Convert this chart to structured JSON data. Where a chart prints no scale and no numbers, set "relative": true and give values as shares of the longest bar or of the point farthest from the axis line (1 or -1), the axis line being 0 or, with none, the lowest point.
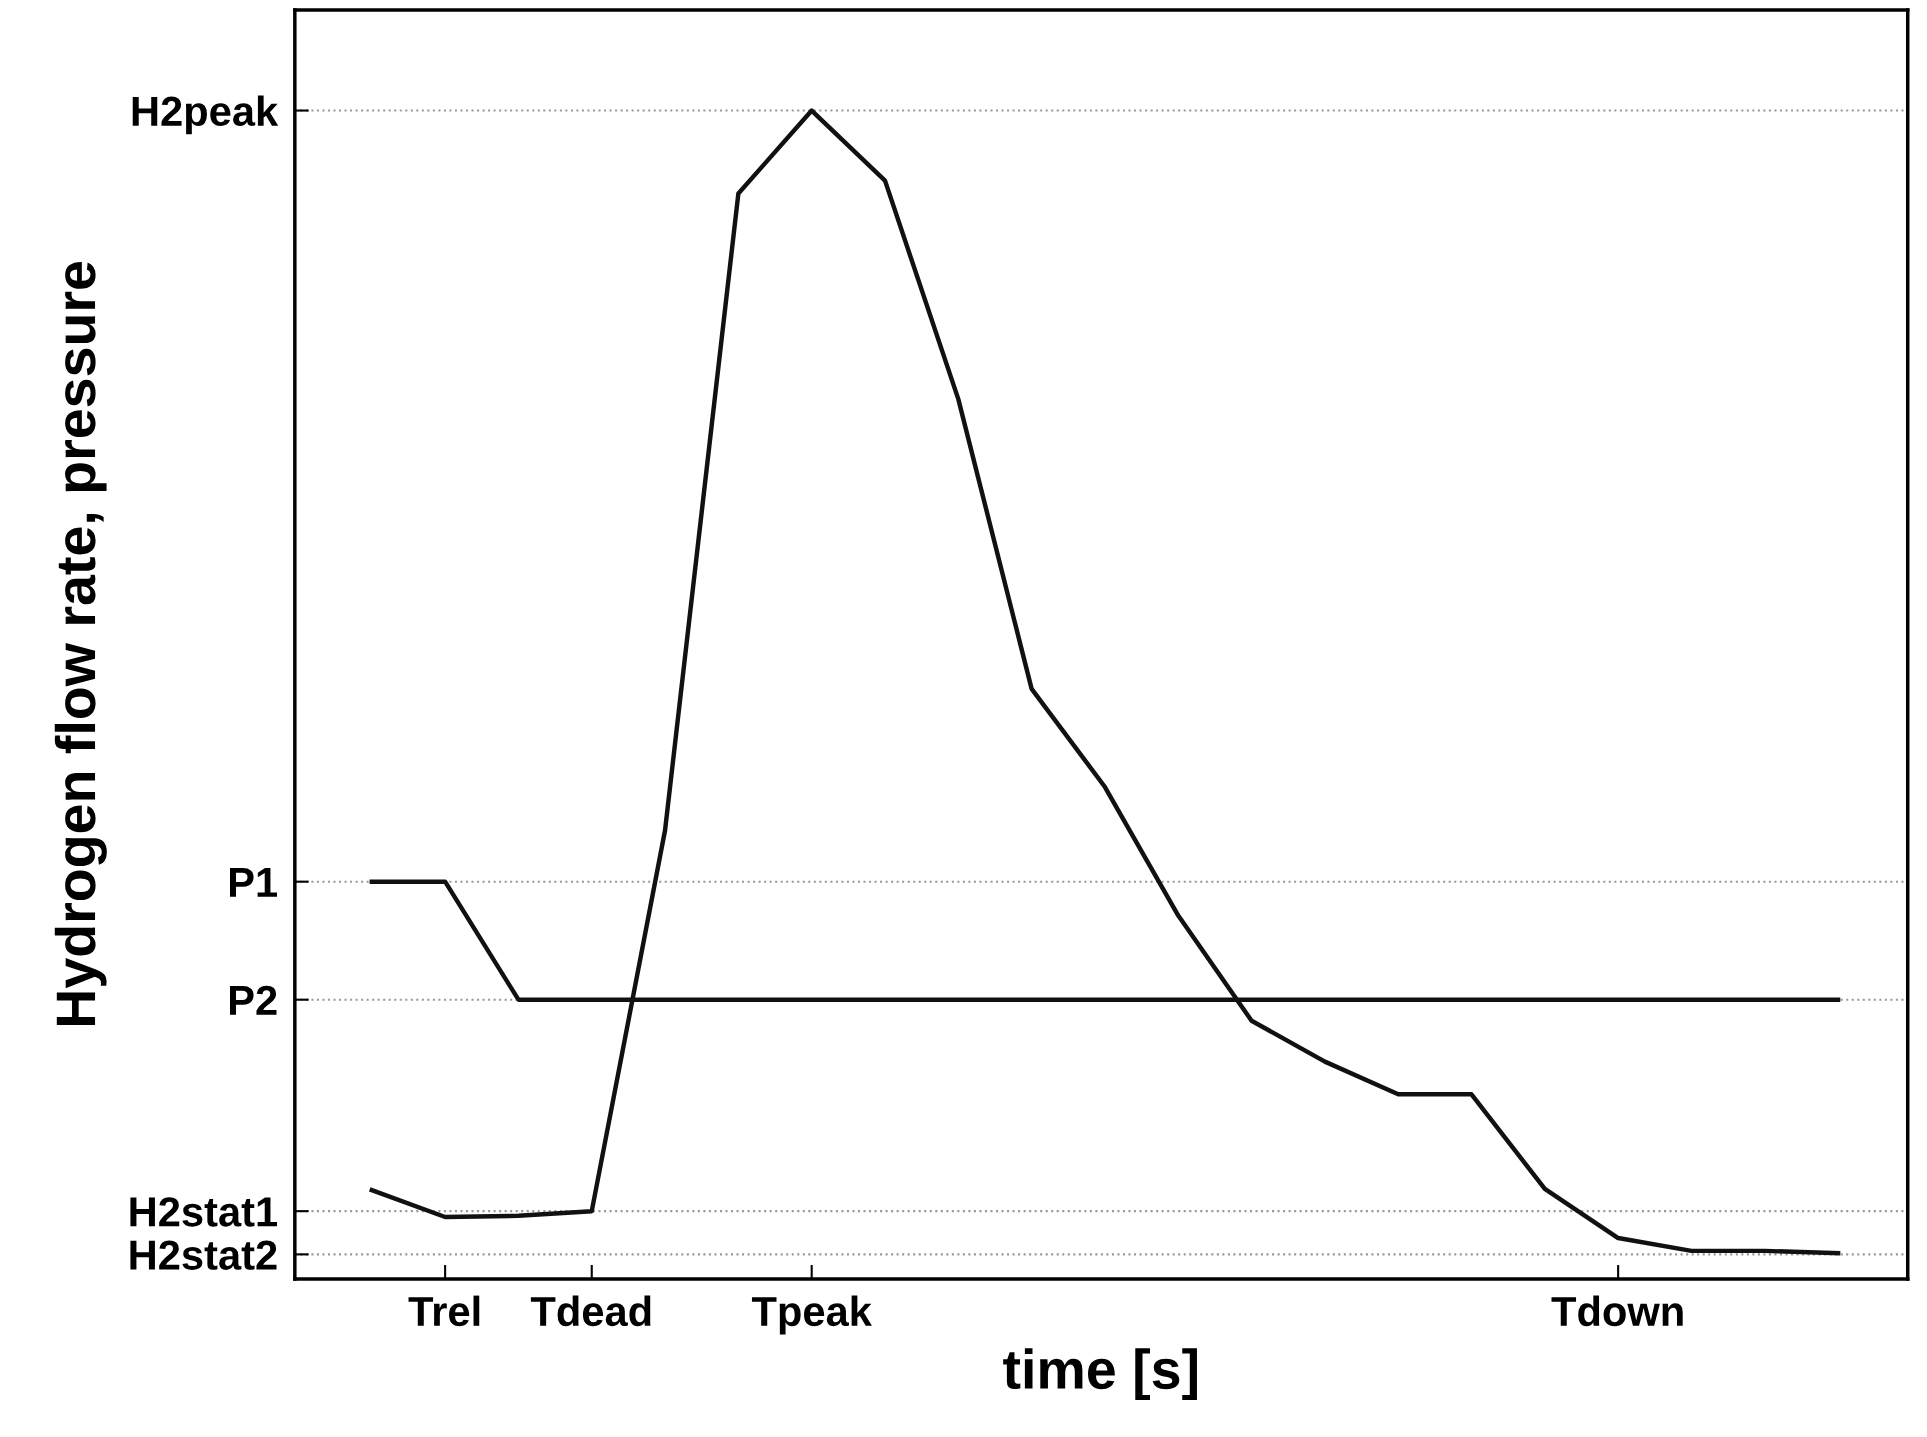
{
  "chart_data": {
    "type": "line",
    "relative": true,
    "xlabel": "time [s]",
    "ylabel": "Hydrogen flow rate, pressure",
    "categories": [
      null,
      "Trel",
      null,
      "Tdead",
      null,
      null,
      "Tpeak",
      null,
      null,
      null,
      null,
      null,
      null,
      null,
      null,
      null,
      null,
      "Tdown",
      null,
      null,
      null
    ],
    "series": [
      {
        "color": "#111111",
        "values": [
          0.076,
          0.053,
          0.054,
          0.058,
          0.384,
          0.929,
          1.0,
          0.94,
          0.753,
          0.505,
          0.421,
          0.311,
          0.221,
          0.186,
          0.158,
          0.158,
          0.077,
          0.035,
          0.024,
          0.024,
          0.022
        ]
      },
      {
        "color": "#111111",
        "values": [
          0.34,
          0.34,
          0.239,
          0.239,
          0.239,
          0.239,
          0.239,
          0.239,
          0.239,
          0.239,
          0.239,
          0.239,
          0.239,
          0.239,
          0.239,
          0.239,
          0.239,
          0.239,
          0.239,
          0.239,
          0.239
        ]
      }
    ],
    "ref_lines": [
      {
        "axis": "y",
        "value": 1.0,
        "label": "H2peak",
        "color": "#999999",
        "line_style": "dotted"
      },
      {
        "axis": "y",
        "value": 0.34,
        "label": "P1",
        "color": "#999999",
        "line_style": "dotted"
      },
      {
        "axis": "y",
        "value": 0.239,
        "label": "P2",
        "color": "#999999",
        "line_style": "dotted"
      },
      {
        "axis": "y",
        "value": 0.058,
        "label": "H2stat1",
        "color": "#999999",
        "line_style": "dotted"
      },
      {
        "axis": "y",
        "value": 0.021,
        "label": "H2stat2",
        "color": "#999999",
        "line_style": "dotted"
      }
    ],
    "grid": false,
    "legend": false,
    "marker": "none",
    "line_style": "solid"
  }
}
